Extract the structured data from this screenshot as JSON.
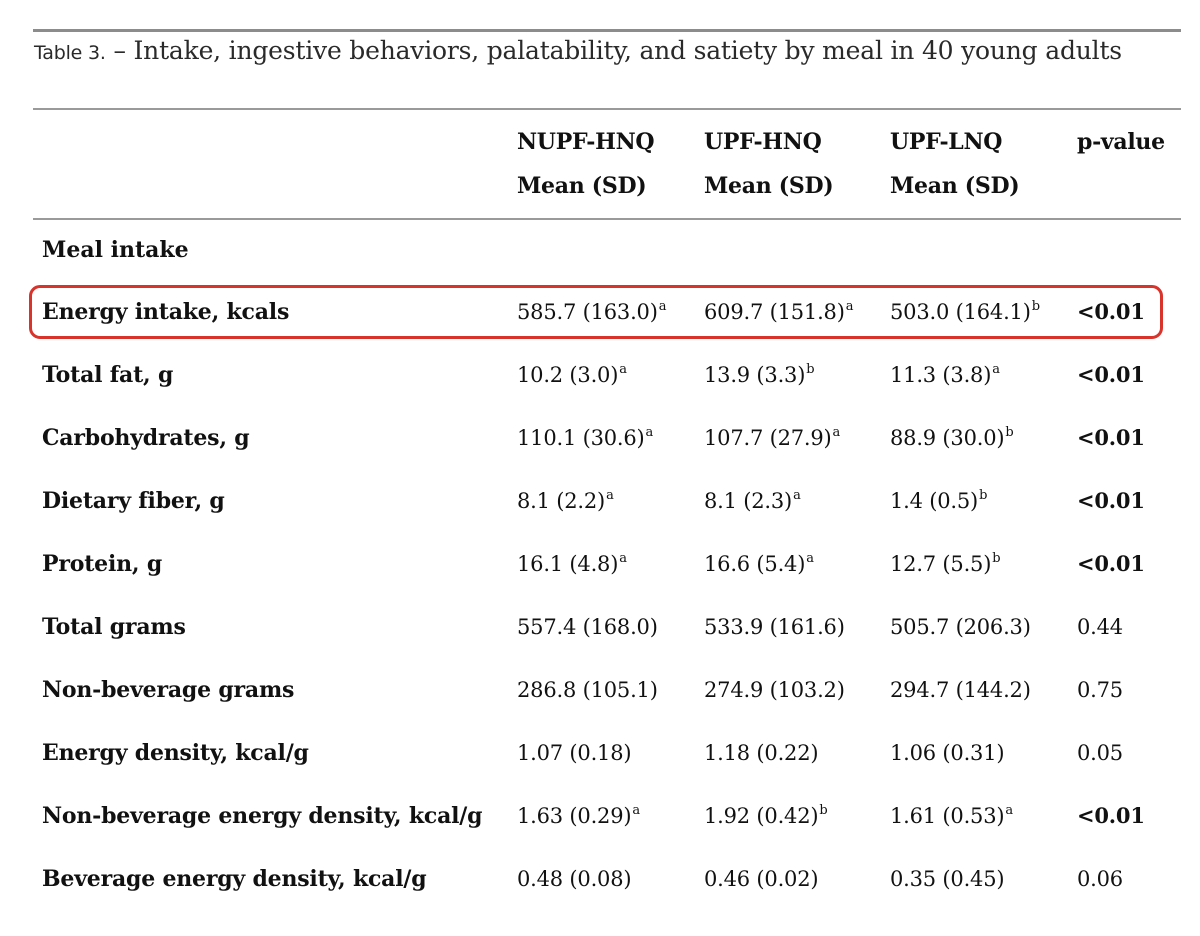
{
  "caption": {
    "label": "Table 3.",
    "title": "– Intake, ingestive behaviors, palatability, and satiety by meal in 40 young adults"
  },
  "columns": [
    {
      "group": "NUPF-HNQ",
      "stat": "Mean (SD)"
    },
    {
      "group": "UPF-HNQ",
      "stat": "Mean (SD)"
    },
    {
      "group": "UPF-LNQ",
      "stat": "Mean (SD)"
    },
    {
      "group": "p-value",
      "stat": ""
    }
  ],
  "section": "Meal intake",
  "rows": [
    {
      "label": "Energy intake, kcals",
      "v1": "585.7 (163.0)",
      "s1": "a",
      "v2": "609.7 (151.8)",
      "s2": "a",
      "v3": "503.0 (164.1)",
      "s3": "b",
      "p": "<0.01",
      "significant": true,
      "highlighted": true
    },
    {
      "label": "Total fat, g",
      "v1": "10.2 (3.0)",
      "s1": "a",
      "v2": "13.9 (3.3)",
      "s2": "b",
      "v3": "11.3 (3.8)",
      "s3": "a",
      "p": "<0.01",
      "significant": true
    },
    {
      "label": "Carbohydrates, g",
      "v1": "110.1 (30.6)",
      "s1": "a",
      "v2": "107.7 (27.9)",
      "s2": "a",
      "v3": "88.9 (30.0)",
      "s3": "b",
      "p": "<0.01",
      "significant": true
    },
    {
      "label": "Dietary fiber, g",
      "v1": "8.1 (2.2)",
      "s1": "a",
      "v2": "8.1 (2.3)",
      "s2": "a",
      "v3": "1.4 (0.5)",
      "s3": "b",
      "p": "<0.01",
      "significant": true
    },
    {
      "label": "Protein, g",
      "v1": "16.1 (4.8)",
      "s1": "a",
      "v2": "16.6 (5.4)",
      "s2": "a",
      "v3": "12.7 (5.5)",
      "s3": "b",
      "p": "<0.01",
      "significant": true
    },
    {
      "label": "Total grams",
      "v1": "557.4 (168.0)",
      "s1": "",
      "v2": "533.9 (161.6)",
      "s2": "",
      "v3": "505.7 (206.3)",
      "s3": "",
      "p": "0.44",
      "significant": false
    },
    {
      "label": "Non-beverage grams",
      "v1": "286.8 (105.1)",
      "s1": "",
      "v2": "274.9 (103.2)",
      "s2": "",
      "v3": "294.7 (144.2)",
      "s3": "",
      "p": "0.75",
      "significant": false
    },
    {
      "label": "Energy density, kcal/g",
      "v1": "1.07 (0.18)",
      "s1": "",
      "v2": "1.18 (0.22)",
      "s2": "",
      "v3": "1.06 (0.31)",
      "s3": "",
      "p": "0.05",
      "significant": false
    },
    {
      "label": "Non-beverage energy density, kcal/g",
      "v1": "1.63 (0.29)",
      "s1": "a",
      "v2": "1.92 (0.42)",
      "s2": "b",
      "v3": "1.61 (0.53)",
      "s3": "a",
      "p": "<0.01",
      "significant": true
    },
    {
      "label": "Beverage energy density, kcal/g",
      "v1": "0.48 (0.08)",
      "s1": "",
      "v2": "0.46 (0.02)",
      "s2": "",
      "v3": "0.35 (0.45)",
      "s3": "",
      "p": "0.06",
      "significant": false
    }
  ],
  "colors": {
    "highlight": "#d8342c",
    "rule": "#9a9a9a",
    "text": "#111111"
  }
}
